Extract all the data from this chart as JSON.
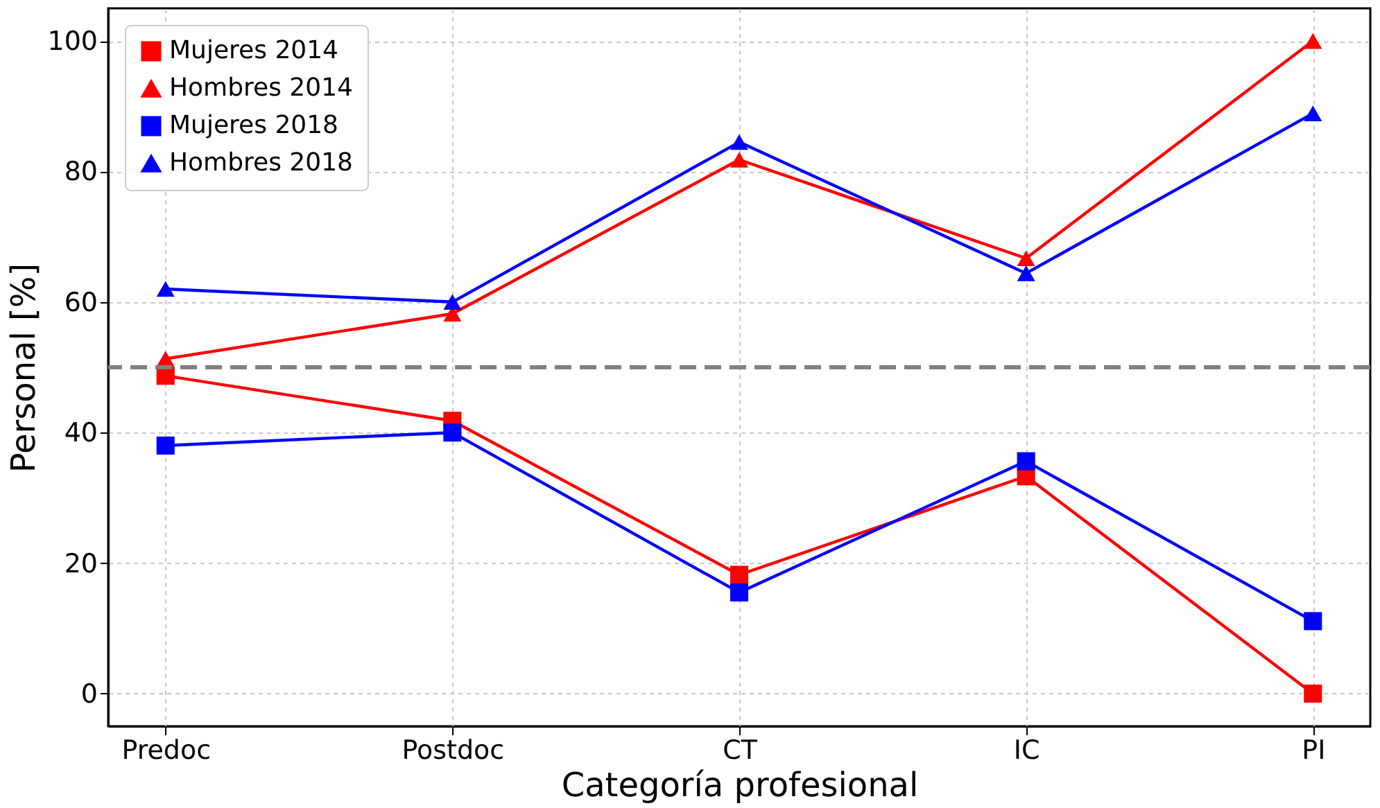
{
  "chart_data": {
    "type": "line",
    "xlabel": "Categoría profesional",
    "ylabel": "Personal [%]",
    "categories": [
      "Predoc",
      "Postdoc",
      "CT",
      "IC",
      "PI"
    ],
    "series": [
      {
        "name": "Mujeres 2014",
        "color": "#ff0000",
        "marker": "square",
        "values": [
          48.7,
          41.8,
          18.2,
          33.3,
          0
        ]
      },
      {
        "name": "Hombres 2014",
        "color": "#ff0000",
        "marker": "triangle",
        "values": [
          51.3,
          58.2,
          81.8,
          66.7,
          100
        ]
      },
      {
        "name": "Mujeres 2018",
        "color": "#0000ff",
        "marker": "square",
        "values": [
          38,
          40,
          15.5,
          35.6,
          11.1
        ]
      },
      {
        "name": "Hombres 2018",
        "color": "#0000ff",
        "marker": "triangle",
        "values": [
          62,
          60,
          84.5,
          64.4,
          88.9
        ]
      }
    ],
    "ylim": [
      -5,
      105
    ],
    "yticks": [
      0,
      20,
      40,
      60,
      80,
      100
    ],
    "grid": true,
    "legend": "top left",
    "line_style": "solid",
    "ref_lines": [
      {
        "axis": "y",
        "value": 50,
        "color": "#808080",
        "line_style": "dashed"
      }
    ]
  }
}
